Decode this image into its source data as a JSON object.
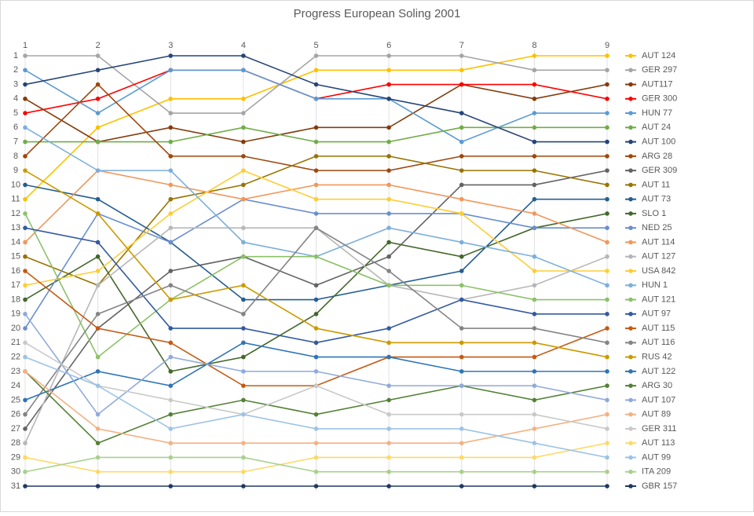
{
  "chart_data": {
    "type": "line",
    "title": "Progress European Soling 2001",
    "x": [
      1,
      2,
      3,
      4,
      5,
      6,
      7,
      8,
      9
    ],
    "xlim": [
      1,
      9
    ],
    "xticks": [
      1,
      2,
      3,
      4,
      5,
      6,
      7,
      8,
      9
    ],
    "ylim": [
      31,
      1
    ],
    "yticks": [
      1,
      2,
      3,
      4,
      5,
      6,
      7,
      8,
      9,
      10,
      11,
      12,
      13,
      14,
      15,
      16,
      17,
      18,
      19,
      20,
      21,
      22,
      23,
      24,
      25,
      26,
      27,
      28,
      29,
      30,
      31
    ],
    "grid": true,
    "legend": "right",
    "series": [
      {
        "name": "AUT 124",
        "color": "#ffc000",
        "values": [
          11,
          6,
          4,
          4,
          2,
          2,
          2,
          1,
          1
        ]
      },
      {
        "name": "GER 297",
        "color": "#a5a5a5",
        "values": [
          1,
          1,
          5,
          5,
          1,
          1,
          1,
          2,
          2
        ]
      },
      {
        "name": "AUT117",
        "color": "#843c0c",
        "values": [
          4,
          7,
          6,
          7,
          6,
          6,
          3,
          4,
          3
        ]
      },
      {
        "name": "GER 300",
        "color": "#ff0000",
        "values": [
          5,
          4,
          2,
          2,
          4,
          3,
          3,
          3,
          4
        ]
      },
      {
        "name": "HUN 77",
        "color": "#5b9bd5",
        "values": [
          2,
          5,
          2,
          2,
          4,
          4,
          7,
          5,
          5
        ]
      },
      {
        "name": "AUT 24",
        "color": "#70ad47",
        "values": [
          7,
          7,
          7,
          6,
          7,
          7,
          6,
          6,
          6
        ]
      },
      {
        "name": "AUT 100",
        "color": "#264478",
        "values": [
          3,
          2,
          1,
          1,
          3,
          4,
          5,
          7,
          7
        ]
      },
      {
        "name": "ARG 28",
        "color": "#9e480e",
        "values": [
          8,
          3,
          8,
          8,
          9,
          9,
          8,
          8,
          8
        ]
      },
      {
        "name": "GER 309",
        "color": "#636363",
        "values": [
          27,
          20,
          16,
          15,
          17,
          15,
          10,
          10,
          9
        ]
      },
      {
        "name": "AUT 11",
        "color": "#997300",
        "values": [
          15,
          17,
          11,
          10,
          8,
          8,
          9,
          9,
          10
        ]
      },
      {
        "name": "AUT 73",
        "color": "#255e91",
        "values": [
          10,
          11,
          14,
          18,
          18,
          17,
          16,
          11,
          11
        ]
      },
      {
        "name": "SLO 1",
        "color": "#43682b",
        "values": [
          18,
          15,
          23,
          22,
          19,
          14,
          15,
          13,
          12
        ]
      },
      {
        "name": "NED 25",
        "color": "#698ed0",
        "values": [
          20,
          12,
          14,
          11,
          12,
          12,
          12,
          13,
          13
        ]
      },
      {
        "name": "AUT 114",
        "color": "#f1975a",
        "values": [
          14,
          9,
          10,
          11,
          10,
          10,
          11,
          12,
          14
        ]
      },
      {
        "name": "AUT 127",
        "color": "#b7b7b7",
        "values": [
          28,
          17,
          13,
          13,
          13,
          17,
          18,
          17,
          15
        ]
      },
      {
        "name": "USA 842",
        "color": "#ffcd33",
        "values": [
          17,
          16,
          12,
          9,
          11,
          11,
          12,
          16,
          16
        ]
      },
      {
        "name": "HUN 1",
        "color": "#7cafdd",
        "values": [
          6,
          9,
          9,
          14,
          15,
          13,
          14,
          15,
          17
        ]
      },
      {
        "name": "AUT 121",
        "color": "#8cc168",
        "values": [
          12,
          22,
          18,
          15,
          15,
          17,
          17,
          18,
          18
        ]
      },
      {
        "name": "AUT 97",
        "color": "#335aa1",
        "values": [
          13,
          14,
          20,
          20,
          21,
          20,
          18,
          19,
          19
        ]
      },
      {
        "name": "AUT 115",
        "color": "#c55a11",
        "values": [
          16,
          20,
          21,
          24,
          24,
          22,
          22,
          22,
          20
        ]
      },
      {
        "name": "AUT 116",
        "color": "#848484",
        "values": [
          26,
          19,
          17,
          19,
          13,
          16,
          20,
          20,
          21
        ]
      },
      {
        "name": "RUS 42",
        "color": "#cc9a00",
        "values": [
          9,
          12,
          18,
          17,
          20,
          21,
          21,
          21,
          22
        ]
      },
      {
        "name": "AUT 122",
        "color": "#2e75b6",
        "values": [
          25,
          23,
          24,
          21,
          22,
          22,
          23,
          23,
          23
        ]
      },
      {
        "name": "ARG 30",
        "color": "#548235",
        "values": [
          23,
          28,
          26,
          25,
          26,
          25,
          24,
          25,
          24
        ]
      },
      {
        "name": "AUT 107",
        "color": "#8faadc",
        "values": [
          19,
          26,
          22,
          23,
          23,
          24,
          24,
          24,
          25
        ]
      },
      {
        "name": "AUT 89",
        "color": "#f4b183",
        "values": [
          23,
          27,
          28,
          28,
          28,
          28,
          28,
          27,
          26
        ]
      },
      {
        "name": "GER 311",
        "color": "#c9c9c9",
        "values": [
          21,
          24,
          25,
          26,
          24,
          26,
          26,
          26,
          27
        ]
      },
      {
        "name": "AUT 113",
        "color": "#ffd966",
        "values": [
          29,
          30,
          30,
          30,
          29,
          29,
          29,
          29,
          28
        ]
      },
      {
        "name": "AUT 99",
        "color": "#9dc3e6",
        "values": [
          22,
          24,
          27,
          26,
          27,
          27,
          27,
          28,
          29
        ]
      },
      {
        "name": "ITA 209",
        "color": "#a9d18e",
        "values": [
          30,
          29,
          29,
          29,
          30,
          30,
          30,
          30,
          30
        ]
      },
      {
        "name": "GBR 157",
        "color": "#1f3864",
        "values": [
          31,
          31,
          31,
          31,
          31,
          31,
          31,
          31,
          31
        ]
      }
    ]
  }
}
